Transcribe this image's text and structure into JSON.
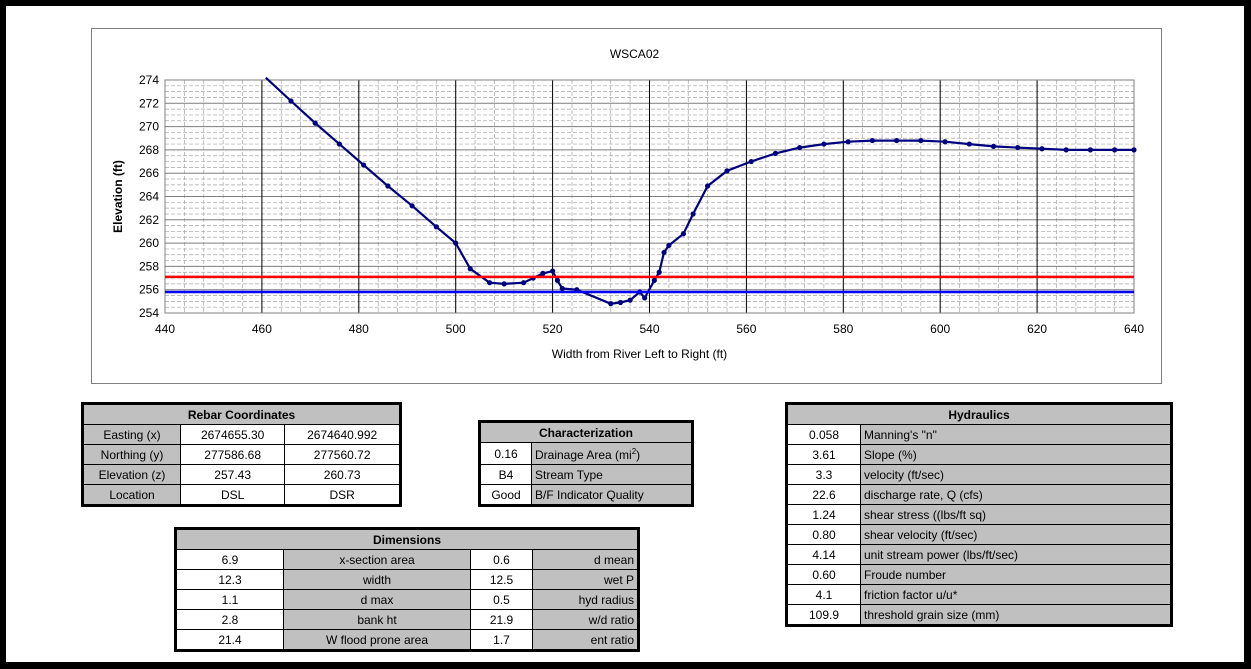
{
  "chart_data": {
    "type": "line",
    "title": "WSCA02",
    "xlabel": "Width from River Left to Right (ft)",
    "ylabel": "Elevation (ft)",
    "xlim": [
      440,
      640
    ],
    "ylim": [
      254,
      274
    ],
    "x_ticks": [
      "440",
      "460",
      "480",
      "500",
      "520",
      "540",
      "560",
      "580",
      "600",
      "620",
      "640"
    ],
    "y_ticks": [
      "254",
      "256",
      "258",
      "260",
      "262",
      "264",
      "266",
      "268",
      "270",
      "272",
      "274"
    ],
    "grid": true,
    "series": [
      {
        "color": "#00007f",
        "x": [
          460.8,
          466,
          471,
          476,
          481,
          486,
          491,
          496,
          500,
          503,
          507,
          510,
          514,
          516,
          518,
          520,
          521,
          522,
          525,
          532,
          534,
          536,
          538,
          539,
          541,
          542,
          543,
          544,
          547,
          549,
          552,
          556,
          561,
          566,
          571,
          576,
          581,
          586,
          591,
          596,
          601,
          606,
          611,
          616,
          621,
          626,
          631,
          636,
          640
        ],
        "y": [
          274.2,
          272.2,
          270.3,
          268.5,
          266.7,
          264.9,
          263.2,
          261.4,
          260.0,
          257.8,
          256.6,
          256.5,
          256.6,
          257.0,
          257.4,
          257.6,
          256.8,
          256.1,
          256.0,
          254.8,
          254.9,
          255.1,
          255.8,
          255.3,
          256.8,
          257.5,
          259.2,
          259.8,
          260.8,
          262.5,
          264.9,
          266.2,
          267.0,
          267.7,
          268.2,
          268.5,
          268.7,
          268.8,
          268.8,
          268.8,
          268.7,
          268.5,
          268.3,
          268.2,
          268.1,
          268.0,
          268.0,
          268.0,
          268.0
        ]
      },
      {
        "color": "#ff0000",
        "x": [
          440,
          640
        ],
        "y": [
          257.1,
          257.1
        ]
      },
      {
        "color": "#0000ff",
        "x": [
          440,
          640
        ],
        "y": [
          255.8,
          255.8
        ]
      }
    ]
  },
  "rebar": {
    "title": "Rebar Coordinates",
    "rows": [
      [
        "Easting (x)",
        "2674655.30",
        "2674640.992"
      ],
      [
        "Northing (y)",
        "277586.68",
        "277560.72"
      ],
      [
        "Elevation (z)",
        "257.43",
        "260.73"
      ],
      [
        "Location",
        "DSL",
        "DSR"
      ]
    ]
  },
  "characterization": {
    "title": "Characterization",
    "rows": [
      [
        "0.16",
        "Drainage Area (mi",
        "2",
        ")"
      ],
      [
        "B4",
        "Stream Type",
        "",
        ""
      ],
      [
        "Good",
        "B/F Indicator Quality",
        "",
        ""
      ]
    ]
  },
  "dimensions": {
    "title": "Dimensions",
    "rows": [
      [
        "6.9",
        "x-section area",
        "0.6",
        "d mean"
      ],
      [
        "12.3",
        "width",
        "12.5",
        "wet P"
      ],
      [
        "1.1",
        "d max",
        "0.5",
        "hyd radius"
      ],
      [
        "2.8",
        "bank ht",
        "21.9",
        "w/d ratio"
      ],
      [
        "21.4",
        "W flood prone area",
        "1.7",
        "ent ratio"
      ]
    ]
  },
  "hydraulics": {
    "title": "Hydraulics",
    "rows": [
      [
        "0.058",
        "Manning's \"n\""
      ],
      [
        "3.61",
        "Slope (%)"
      ],
      [
        "3.3",
        "velocity (ft/sec)"
      ],
      [
        "22.6",
        "discharge rate, Q (cfs)"
      ],
      [
        "1.24",
        "shear stress ((lbs/ft sq)"
      ],
      [
        "0.80",
        "shear velocity (ft/sec)"
      ],
      [
        "4.14",
        "unit stream power (lbs/ft/sec)"
      ],
      [
        "0.60",
        "Froude number"
      ],
      [
        "4.1",
        "friction factor u/u*"
      ],
      [
        "109.9",
        "threshold grain size (mm)"
      ]
    ]
  }
}
